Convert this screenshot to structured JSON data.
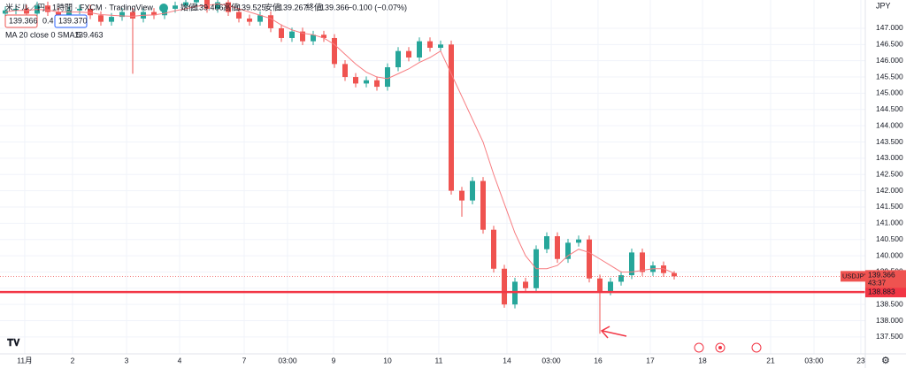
{
  "chart_data": {
    "type": "candlestick",
    "title": "米ドル／円 · 1時間 · FXCM · TradingView",
    "ohlc_labels": [
      "始値",
      "高値",
      "安値",
      "終値"
    ],
    "change": "−0.100 (−0.07%)",
    "bid": "139.366",
    "spread": "0.4",
    "ask": "139.370",
    "ma_label": "MA 20 close 0 SMA 5",
    "currency": "JPY",
    "symbol": "USDJPY",
    "countdown": "43:37",
    "up_color": "#26a69a",
    "down_color": "#ef5350",
    "ma_color": "#f77c80",
    "level": 138.883,
    "level_color": "#f23645",
    "grid": true,
    "xlim": [
      -0.5,
      81
    ],
    "ylim": [
      136.98,
      147.87
    ],
    "xticks": [
      {
        "value": 1.83,
        "label": "11月"
      },
      {
        "value": 6.33,
        "label": "2"
      },
      {
        "value": 11.42,
        "label": "3"
      },
      {
        "value": 16.42,
        "label": "4"
      },
      {
        "value": 22.5,
        "label": "7"
      },
      {
        "value": 26.58,
        "label": "03:00"
      },
      {
        "value": 30.92,
        "label": "9"
      },
      {
        "value": 36,
        "label": "10"
      },
      {
        "value": 40.83,
        "label": "11"
      },
      {
        "value": 47.25,
        "label": "14"
      },
      {
        "value": 51.42,
        "label": "03:00"
      },
      {
        "value": 55.83,
        "label": "16"
      },
      {
        "value": 60.75,
        "label": "17"
      },
      {
        "value": 65.67,
        "label": "18"
      },
      {
        "value": 72.08,
        "label": "21"
      },
      {
        "value": 76.17,
        "label": "03:00"
      },
      {
        "value": 80.58,
        "label": "23"
      }
    ],
    "yticks": [
      {
        "value": 137.5,
        "label": "137.500"
      },
      {
        "value": 138,
        "label": "138.000"
      },
      {
        "value": 138.5,
        "label": "138.500"
      },
      {
        "value": 139,
        "label": "139.000"
      },
      {
        "value": 139.5,
        "label": "139.500"
      },
      {
        "value": 140,
        "label": "140.000"
      },
      {
        "value": 140.5,
        "label": "140.500"
      },
      {
        "value": 141,
        "label": "141.000"
      },
      {
        "value": 141.5,
        "label": "141.500"
      },
      {
        "value": 142,
        "label": "142.000"
      },
      {
        "value": 142.5,
        "label": "142.500"
      },
      {
        "value": 143,
        "label": "143.000"
      },
      {
        "value": 143.5,
        "label": "143.500"
      },
      {
        "value": 144,
        "label": "144.000"
      },
      {
        "value": 144.5,
        "label": "144.500"
      },
      {
        "value": 145,
        "label": "145.000"
      },
      {
        "value": 145.5,
        "label": "145.500"
      },
      {
        "value": 146,
        "label": "146.000"
      },
      {
        "value": 146.5,
        "label": "146.500"
      },
      {
        "value": 147,
        "label": "147.000"
      }
    ],
    "candles": [
      [
        147.45,
        147.67,
        147.33,
        147.55
      ],
      [
        147.55,
        147.72,
        147.43,
        147.6
      ],
      [
        147.6,
        147.72,
        147.33,
        147.45
      ],
      [
        147.45,
        147.82,
        147.33,
        147.7
      ],
      [
        147.7,
        147.82,
        147.38,
        147.5
      ],
      [
        147.5,
        147.62,
        147.18,
        147.3
      ],
      [
        147.3,
        147.67,
        147.18,
        147.55
      ],
      [
        147.55,
        147.72,
        147.43,
        147.6
      ],
      [
        147.6,
        147.72,
        147.28,
        147.4
      ],
      [
        147.4,
        147.52,
        147.08,
        147.2
      ],
      [
        147.2,
        147.47,
        147.08,
        147.35
      ],
      [
        147.35,
        147.62,
        147.23,
        147.5
      ],
      [
        147.5,
        147.62,
        145.6,
        147.3
      ],
      [
        147.3,
        147.62,
        147.18,
        147.5
      ],
      [
        147.5,
        147.62,
        147.28,
        147.4
      ],
      [
        147.4,
        147.72,
        147.28,
        147.6
      ],
      [
        147.6,
        147.82,
        147.48,
        147.7
      ],
      [
        147.7,
        147.92,
        147.58,
        147.8
      ],
      [
        147.8,
        148.02,
        147.68,
        147.9
      ],
      [
        147.9,
        148.02,
        147.48,
        147.6
      ],
      [
        147.6,
        147.92,
        147.48,
        147.8
      ],
      [
        147.8,
        147.92,
        147.38,
        147.5
      ],
      [
        147.5,
        147.62,
        147.18,
        147.3
      ],
      [
        147.3,
        147.42,
        147.08,
        147.2
      ],
      [
        147.2,
        147.52,
        147.08,
        147.4
      ],
      [
        147.4,
        147.52,
        146.88,
        147.0
      ],
      [
        147.0,
        147.12,
        146.58,
        146.7
      ],
      [
        146.7,
        147.02,
        146.58,
        146.9
      ],
      [
        146.9,
        147.02,
        146.48,
        146.6
      ],
      [
        146.6,
        146.92,
        146.48,
        146.8
      ],
      [
        146.8,
        146.92,
        146.58,
        146.7
      ],
      [
        146.7,
        146.82,
        145.78,
        145.9
      ],
      [
        145.9,
        146.02,
        145.38,
        145.5
      ],
      [
        145.5,
        145.62,
        145.18,
        145.3
      ],
      [
        145.3,
        145.52,
        145.18,
        145.4
      ],
      [
        145.4,
        145.52,
        145.08,
        145.2
      ],
      [
        145.2,
        145.92,
        145.08,
        145.8
      ],
      [
        145.8,
        146.42,
        145.68,
        146.3
      ],
      [
        146.3,
        146.42,
        145.98,
        146.1
      ],
      [
        146.1,
        146.72,
        145.98,
        146.6
      ],
      [
        146.6,
        146.72,
        146.28,
        146.4
      ],
      [
        146.4,
        146.62,
        146.28,
        146.5
      ],
      [
        146.5,
        146.62,
        141.88,
        142.0
      ],
      [
        142.0,
        142.12,
        141.2,
        141.7
      ],
      [
        141.7,
        142.42,
        141.58,
        142.3
      ],
      [
        142.3,
        142.42,
        140.68,
        140.8
      ],
      [
        140.8,
        140.92,
        139.48,
        139.6
      ],
      [
        139.6,
        139.72,
        138.4,
        138.5
      ],
      [
        138.5,
        139.32,
        138.38,
        139.2
      ],
      [
        139.2,
        139.32,
        138.88,
        139.0
      ],
      [
        139.0,
        140.32,
        138.88,
        140.2
      ],
      [
        140.2,
        140.72,
        140.08,
        140.6
      ],
      [
        140.6,
        140.72,
        139.78,
        139.9
      ],
      [
        139.9,
        140.52,
        139.78,
        140.4
      ],
      [
        140.4,
        140.62,
        140.28,
        140.5
      ],
      [
        140.5,
        140.62,
        139.18,
        139.3
      ],
      [
        139.3,
        139.42,
        137.6,
        138.9
      ],
      [
        138.9,
        139.32,
        138.78,
        139.2
      ],
      [
        139.2,
        139.52,
        139.08,
        139.4
      ],
      [
        139.4,
        140.22,
        139.28,
        140.1
      ],
      [
        140.1,
        140.22,
        139.38,
        139.5
      ],
      [
        139.5,
        139.82,
        139.38,
        139.7
      ],
      [
        139.7,
        139.82,
        139.35,
        139.466
      ],
      [
        139.466,
        139.525,
        139.267,
        139.366
      ]
    ],
    "ma": [
      147.5,
      147.55,
      147.55,
      147.58,
      147.56,
      147.5,
      147.5,
      147.5,
      147.48,
      147.42,
      147.4,
      147.38,
      147.37,
      147.4,
      147.41,
      147.46,
      147.54,
      147.6,
      147.68,
      147.7,
      147.75,
      147.7,
      147.6,
      147.5,
      147.4,
      147.3,
      147.1,
      146.95,
      146.85,
      146.8,
      146.7,
      146.5,
      146.2,
      145.9,
      145.65,
      145.5,
      145.45,
      145.6,
      145.75,
      145.95,
      146.1,
      146.3,
      145.6,
      144.9,
      144.2,
      143.5,
      142.5,
      141.6,
      140.7,
      140.0,
      139.6,
      139.6,
      139.7,
      140.0,
      140.2,
      140.1,
      139.9,
      139.7,
      139.5,
      139.5,
      139.55,
      139.6,
      139.6,
      139.463
    ]
  }
}
